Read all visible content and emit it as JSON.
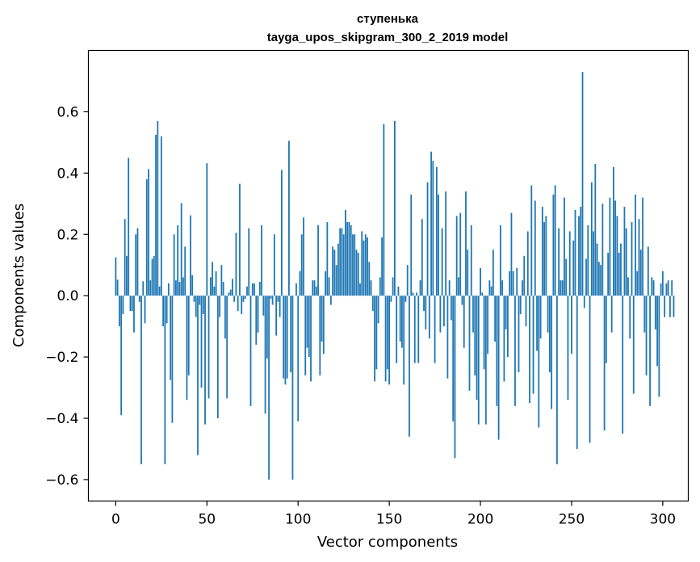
{
  "chart_data": {
    "type": "bar",
    "title_line1": "ступенька",
    "title_line2": "tayga_upos_skipgram_300_2_2019 model",
    "xlabel": "Vector components",
    "ylabel": "Components values",
    "xlim": [
      -15,
      314
    ],
    "ylim": [
      -0.67,
      0.8
    ],
    "xticks": [
      0,
      50,
      100,
      150,
      200,
      250,
      300
    ],
    "xtick_labels": [
      "0",
      "50",
      "100",
      "150",
      "200",
      "250",
      "300"
    ],
    "yticks": [
      -0.6,
      -0.4,
      -0.2,
      0.0,
      0.2,
      0.4,
      0.6
    ],
    "ytick_labels": [
      "−0.6",
      "−0.4",
      "−0.2",
      "0.0",
      "0.2",
      "0.4",
      "0.6"
    ],
    "bar_color": "#1f77b4",
    "values": [
      0.125,
      0.052,
      -0.1,
      -0.39,
      -0.06,
      0.25,
      0.13,
      0.45,
      -0.05,
      -0.05,
      -0.12,
      0.2,
      0.22,
      -0.02,
      -0.55,
      0.047,
      -0.09,
      0.38,
      0.413,
      0.05,
      0.12,
      0.13,
      0.525,
      0.57,
      0.03,
      0.52,
      -0.1,
      -0.55,
      -0.09,
      0.04,
      -0.275,
      -0.415,
      0.2,
      0.05,
      0.23,
      0.045,
      0.302,
      0.06,
      0.16,
      -0.34,
      -0.26,
      0.262,
      0.067,
      -0.02,
      -0.07,
      -0.52,
      -0.03,
      -0.3,
      -0.06,
      -0.42,
      0.432,
      -0.335,
      0.06,
      0.11,
      0.03,
      0.08,
      -0.4,
      -0.07,
      0.1,
      0.045,
      -0.14,
      -0.335,
      0.01,
      0.02,
      0.055,
      -0.02,
      0.205,
      -0.05,
      0.365,
      -0.06,
      -0.02,
      -0.01,
      0.03,
      0.22,
      -0.36,
      0.04,
      0.04,
      -0.16,
      -0.12,
      0.045,
      0.23,
      -0.065,
      -0.385,
      -0.205,
      -0.6,
      -0.01,
      -0.03,
      0.2,
      -0.13,
      -0.02,
      -0.07,
      0.41,
      -0.27,
      -0.29,
      -0.27,
      0.505,
      -0.25,
      -0.6,
      0.0,
      0.04,
      -0.41,
      0.08,
      0.2,
      0.255,
      -0.26,
      -0.17,
      -0.2,
      -0.28,
      0.05,
      0.05,
      0.03,
      0.23,
      -0.26,
      -0.15,
      -0.19,
      0.08,
      0.24,
      0.06,
      -0.03,
      0.16,
      0.15,
      0.1,
      0.17,
      0.22,
      0.22,
      0.2,
      0.28,
      0.24,
      0.24,
      0.23,
      0.2,
      0.2,
      0.15,
      0.14,
      0.04,
      0.21,
      0.18,
      0.2,
      0.19,
      0.11,
      0.05,
      -0.05,
      -0.28,
      -0.24,
      -0.09,
      0.06,
      0.19,
      0.56,
      -0.28,
      -0.24,
      -0.29,
      -0.02,
      0.06,
      0.57,
      -0.22,
      0.03,
      -0.15,
      -0.17,
      -0.29,
      -0.02,
      0.1,
      -0.46,
      0.33,
      0.01,
      -0.22,
      0.01,
      -0.22,
      0.05,
      0.25,
      -0.05,
      -0.11,
      0.37,
      -0.14,
      0.47,
      0.44,
      -0.22,
      0.42,
      0.33,
      -0.12,
      0.22,
      -0.1,
      0.34,
      -0.27,
      0.05,
      -0.08,
      -0.41,
      -0.53,
      0.26,
      0.06,
      0.27,
      -0.03,
      -0.17,
      0.34,
      0.15,
      -0.31,
      0.23,
      -0.12,
      -0.26,
      -0.34,
      -0.42,
      0.09,
      0.01,
      -0.24,
      -0.42,
      -0.19,
      0.05,
      0.03,
      0.15,
      -0.15,
      -0.36,
      -0.47,
      0.23,
      0.05,
      -0.28,
      -0.11,
      -0.2,
      0.08,
      0.27,
      0.08,
      -0.36,
      0.09,
      -0.25,
      -0.06,
      0.05,
      0.13,
      -0.1,
      0.21,
      -0.35,
      0.36,
      -0.32,
      0.31,
      -0.18,
      -0.43,
      -0.14,
      0.29,
      0.24,
      0.26,
      -0.12,
      -0.25,
      -0.37,
      0.33,
      0.36,
      -0.55,
      0.22,
      0.05,
      0.05,
      0.32,
      0.12,
      -0.34,
      0.21,
      -0.19,
      0.18,
      0.28,
      -0.5,
      0.26,
      0.29,
      0.73,
      -0.04,
      0.12,
      0.23,
      -0.48,
      0.37,
      0.21,
      0.43,
      0.17,
      0.11,
      0.1,
      0.3,
      -0.44,
      -0.22,
      0.14,
      0.32,
      -0.12,
      0.42,
      0.31,
      0.26,
      0.14,
      0.17,
      -0.45,
      0.29,
      0.22,
      0.06,
      -0.14,
      0.24,
      -0.32,
      0.33,
      0.08,
      0.25,
      0.15,
      0.32,
      -0.12,
      -0.26,
      0.16,
      -0.36,
      0.06,
      0.05,
      -0.11,
      -0.23,
      -0.33,
      0.04,
      0.08,
      -0.07,
      0.04,
      0.05,
      -0.07,
      0.05,
      -0.07
    ]
  }
}
